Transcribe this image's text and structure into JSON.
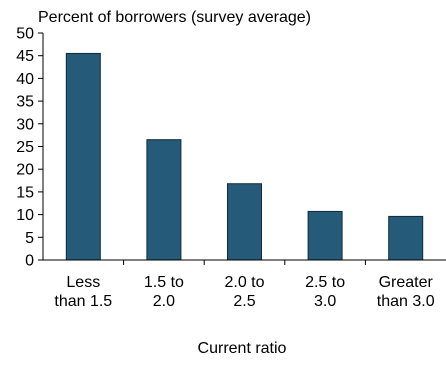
{
  "chart_data": {
    "type": "bar",
    "title": "Percent of borrowers (survey average)",
    "xlabel": "Current ratio",
    "ylabel": "",
    "ylim": [
      0,
      50
    ],
    "yticks": [
      0,
      5,
      10,
      15,
      20,
      25,
      30,
      35,
      40,
      45,
      50
    ],
    "categories": [
      [
        "Less",
        "than 1.5"
      ],
      [
        "1.5 to",
        "2.0"
      ],
      [
        "2.0 to",
        "2.5"
      ],
      [
        "2.5 to",
        "3.0"
      ],
      [
        "Greater",
        "than 3.0"
      ]
    ],
    "values": [
      45.5,
      26.5,
      16.8,
      10.7,
      9.6
    ],
    "bar_color": "#255a78",
    "grid": false,
    "legend": "none"
  }
}
